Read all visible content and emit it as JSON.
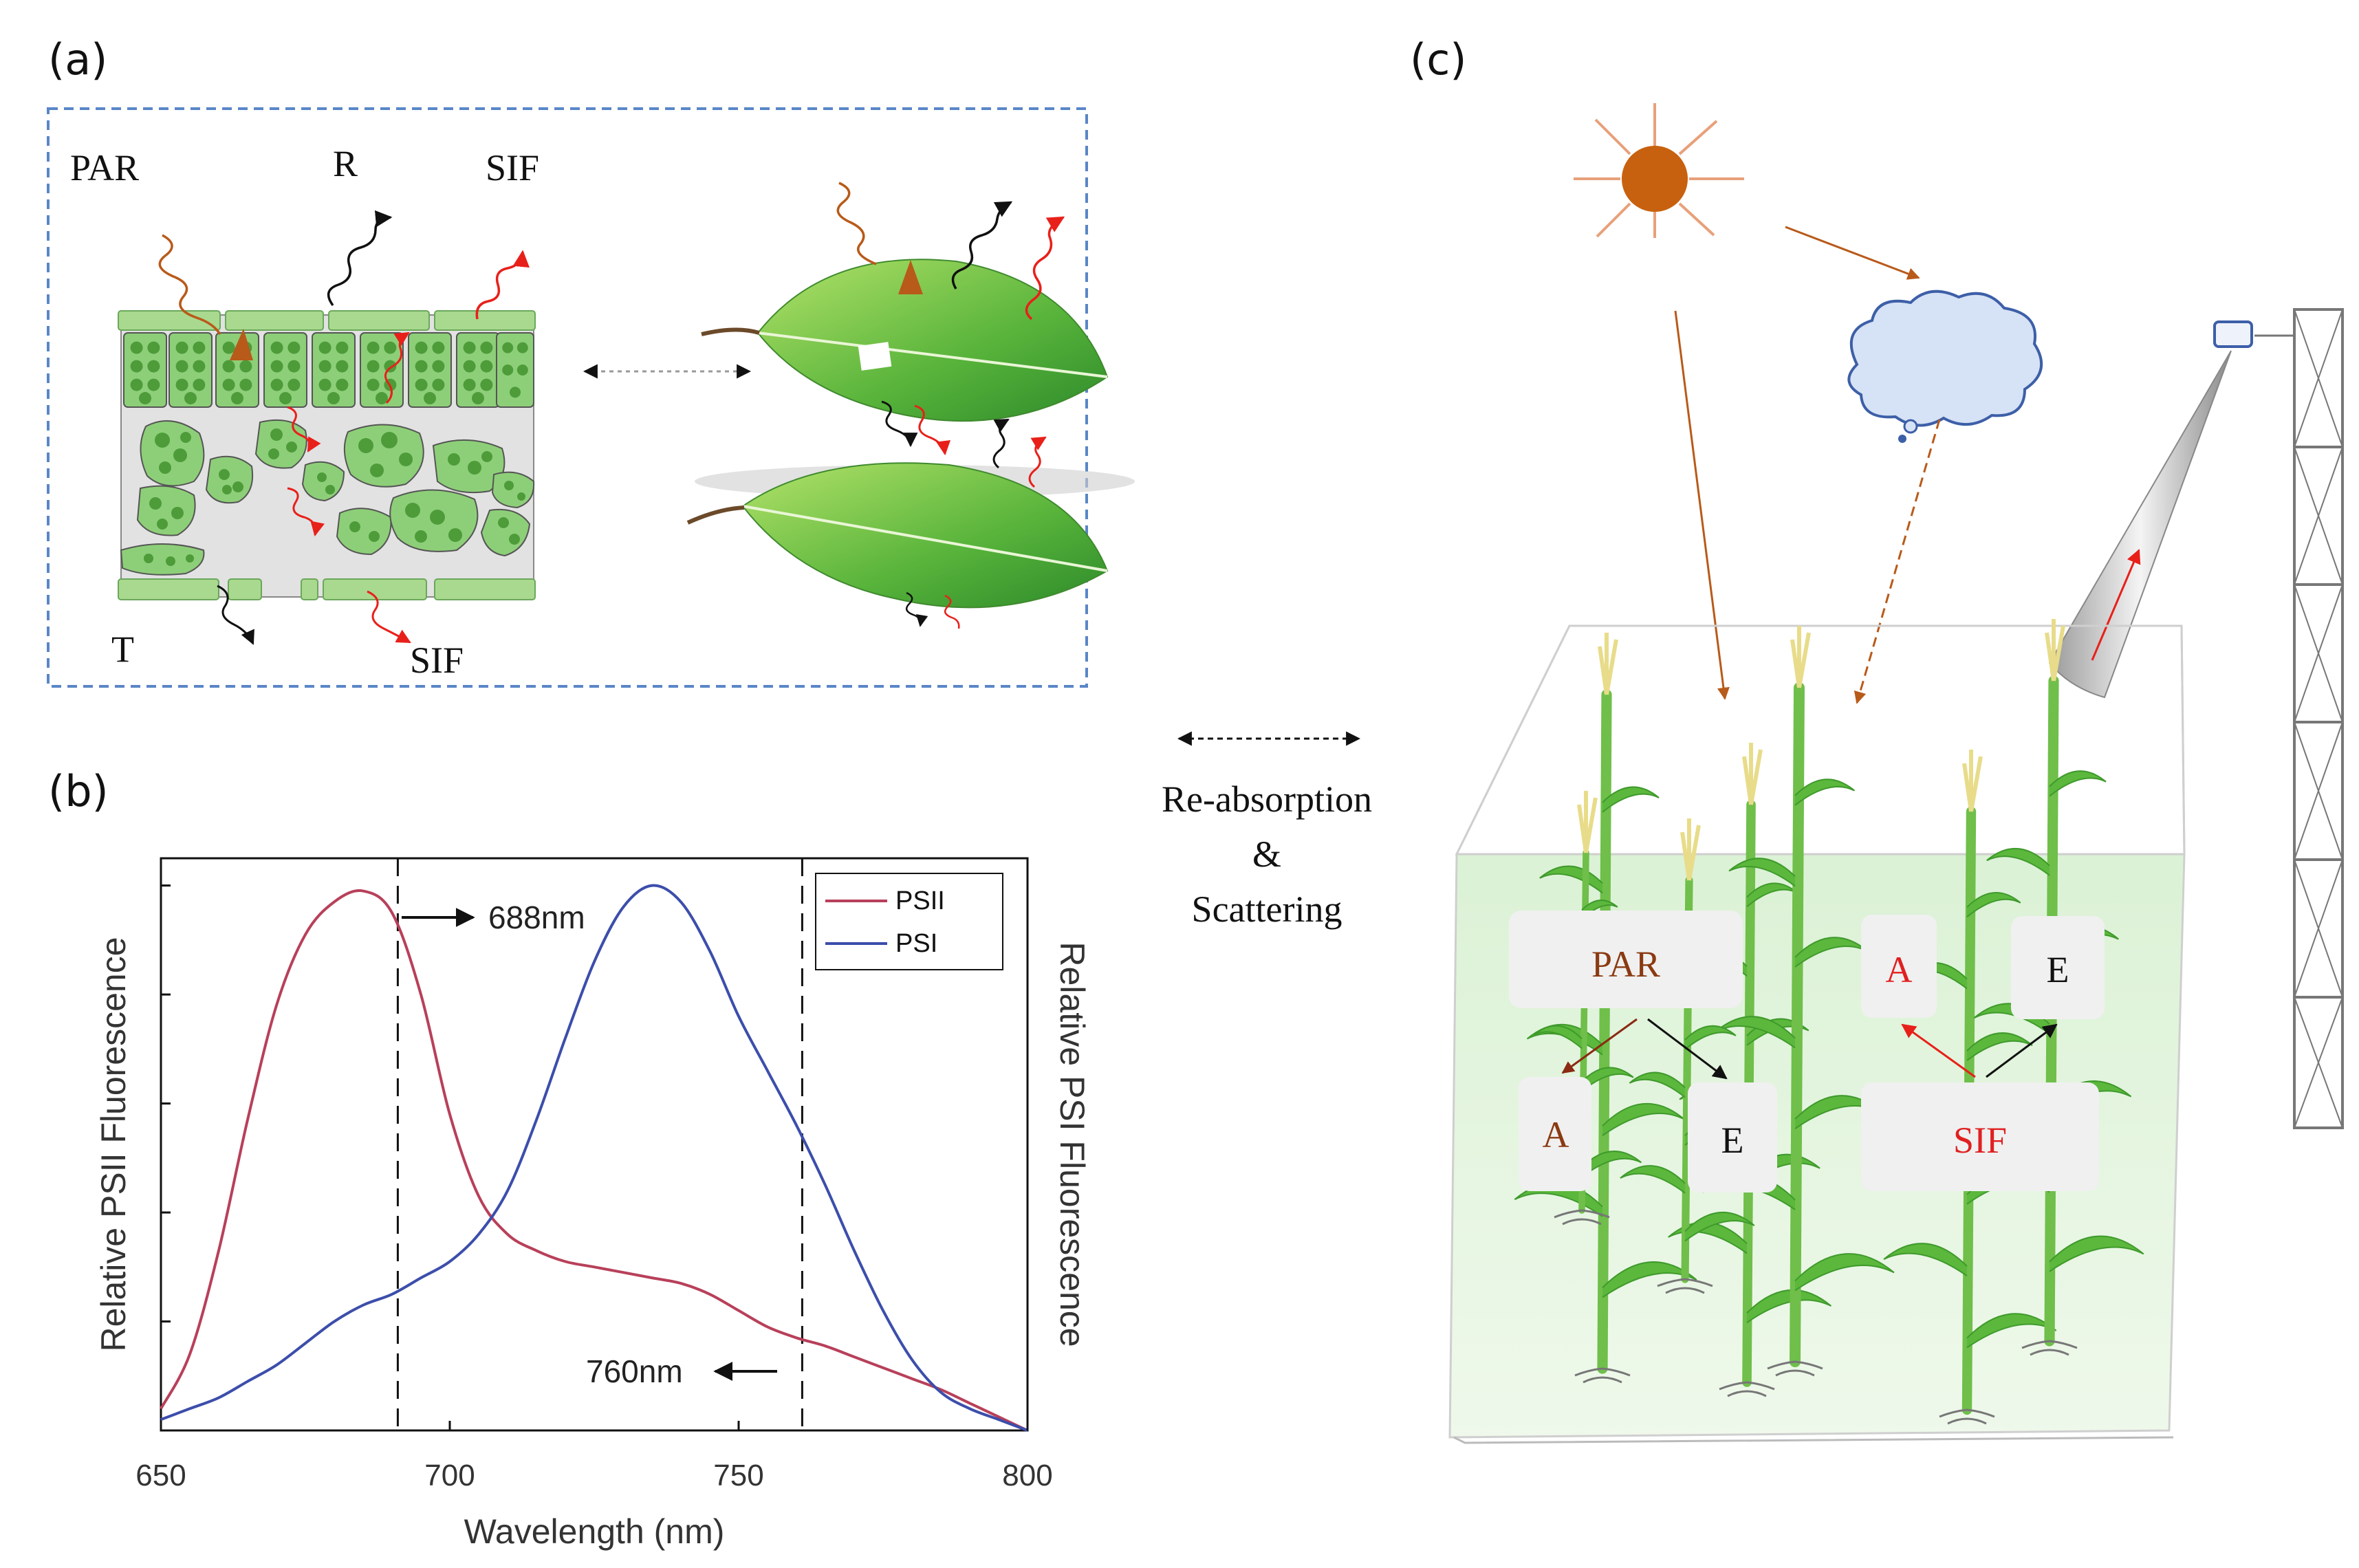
{
  "panel_labels": {
    "a": "(a)",
    "b": "(b)",
    "c": "(c)"
  },
  "panel_a": {
    "par": "PAR",
    "r": "R",
    "sif_top": "SIF",
    "t": "T",
    "sif_bottom": "SIF"
  },
  "middle": {
    "line1": "Re-absorption",
    "line2": "&",
    "line3": "Scattering"
  },
  "panel_b": {
    "ylabel_left": "Relative PSII Fluorescence",
    "ylabel_right": "Relative PSI Fluorescence",
    "xlabel": "Wavelength (nm)",
    "ann_688": "688nm",
    "ann_760": "760nm"
  },
  "chart_data": {
    "type": "line",
    "title": "",
    "xlabel": "Wavelength (nm)",
    "ylabel": "Relative PSII Fluorescence",
    "ylabel_right": "Relative PSI Fluorescence",
    "xlim": [
      650,
      800
    ],
    "ylim": [
      0,
      1.05
    ],
    "xticks": [
      650,
      700,
      750,
      800
    ],
    "xtick_labels": [
      "650",
      "700",
      "750",
      "800"
    ],
    "grid": false,
    "legend": "top-right",
    "vlines": [
      691,
      761
    ],
    "x": [
      650,
      655,
      660,
      665,
      670,
      675,
      680,
      685,
      690,
      695,
      700,
      705,
      710,
      715,
      720,
      725,
      730,
      735,
      740,
      745,
      750,
      755,
      760,
      765,
      770,
      775,
      780,
      785,
      790,
      795,
      800
    ],
    "series": [
      {
        "name": "PSII",
        "color": "#b8405a",
        "values": [
          0.04,
          0.14,
          0.33,
          0.57,
          0.78,
          0.91,
          0.97,
          0.99,
          0.95,
          0.8,
          0.58,
          0.43,
          0.36,
          0.33,
          0.31,
          0.3,
          0.29,
          0.28,
          0.27,
          0.25,
          0.22,
          0.19,
          0.17,
          0.155,
          0.135,
          0.115,
          0.095,
          0.075,
          0.05,
          0.025,
          0.0
        ]
      },
      {
        "name": "PSI",
        "color": "#3c4eab",
        "values": [
          0.02,
          0.04,
          0.06,
          0.09,
          0.12,
          0.16,
          0.2,
          0.23,
          0.25,
          0.28,
          0.31,
          0.36,
          0.44,
          0.57,
          0.72,
          0.86,
          0.96,
          1.0,
          0.97,
          0.88,
          0.76,
          0.66,
          0.56,
          0.45,
          0.33,
          0.22,
          0.13,
          0.07,
          0.04,
          0.02,
          0.0
        ]
      }
    ]
  },
  "panel_c": {
    "par_box": "PAR",
    "a_left": "A",
    "e_left": "E",
    "a_right": "A",
    "e_right": "E",
    "sif_box": "SIF"
  },
  "colors": {
    "dashed_border": "#5a86c8",
    "sun": "#c8610f",
    "sun_rays": "#e8a07a",
    "cloud_fill": "#d6e2f5",
    "cloud_stroke": "#3d5fa8",
    "leaf_green": "#8dcf78",
    "cell_dark": "#4e9b3a",
    "box_grey": "#f0f0f0",
    "psii": "#b8405a",
    "psi": "#3c4eab",
    "red_arrow": "#e8201a",
    "orange_arrow": "#b85a1a",
    "brown_text": "#8a3a12",
    "red_text": "#e02020"
  }
}
